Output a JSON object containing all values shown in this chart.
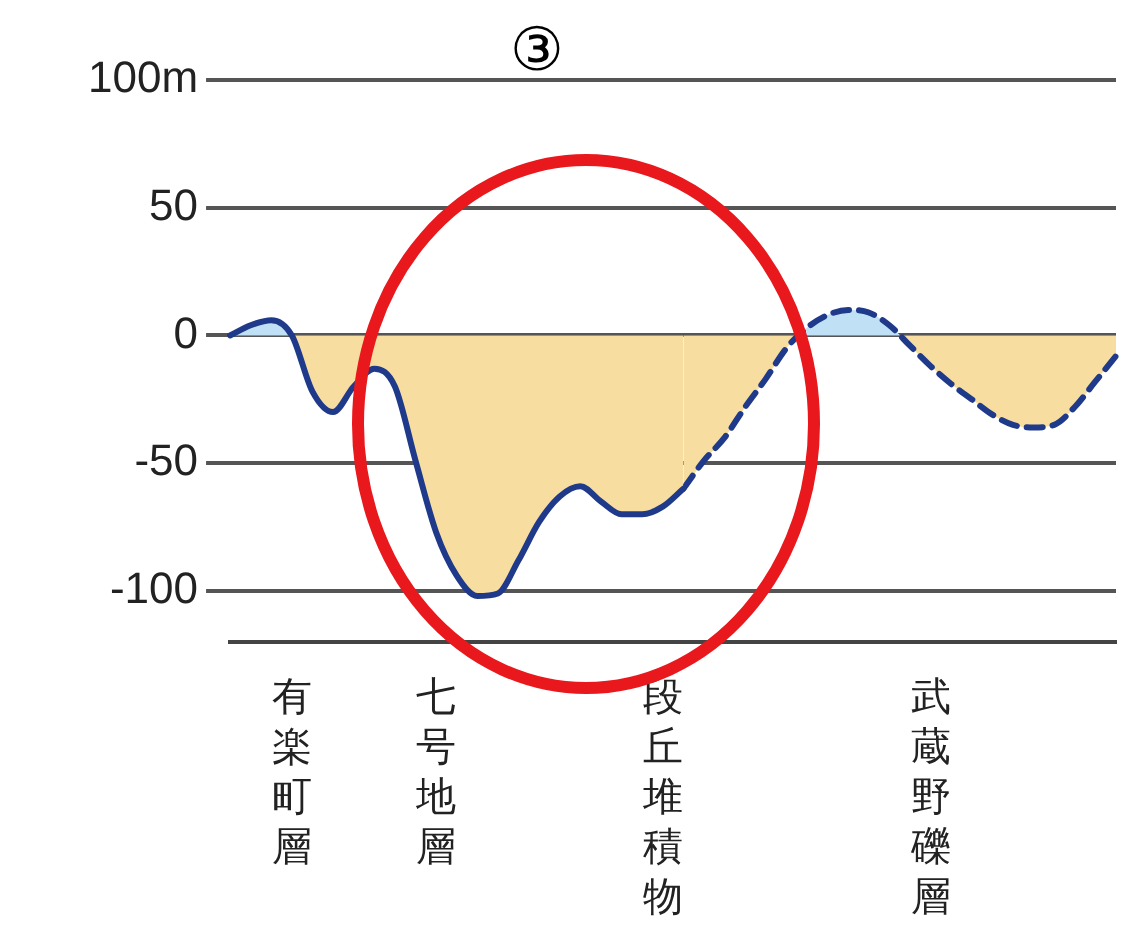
{
  "chart_data": {
    "type": "area",
    "annotations": [
      "③"
    ],
    "categories": [
      null,
      null,
      null,
      "有楽町層",
      null,
      null,
      null,
      null,
      null,
      null,
      "七号地層",
      null,
      null,
      null,
      null,
      null,
      null,
      null,
      null,
      null,
      null,
      "段丘堆積物",
      null,
      null,
      null,
      null,
      null,
      null,
      null,
      null,
      null,
      null,
      null,
      null,
      "武蔵野礫層",
      null,
      null,
      null,
      null,
      null,
      null,
      null,
      null,
      null
    ],
    "series": [
      {
        "color": "#1f3a8a",
        "line_style": "solid",
        "values": [
          0,
          4,
          6,
          0,
          -22,
          -30,
          -20,
          -13,
          -20,
          -49,
          -77,
          -94,
          -102,
          -101,
          -88,
          -73,
          -63,
          -59,
          -65,
          -70,
          -70,
          -67,
          -60,
          null,
          null,
          null,
          null,
          null,
          null,
          null,
          null,
          null,
          null,
          null,
          null,
          null,
          null,
          null,
          null,
          null,
          null,
          null,
          null,
          null
        ]
      },
      {
        "color": "#1f3a8a",
        "line_style": "dashed",
        "values": [
          null,
          null,
          null,
          null,
          null,
          null,
          null,
          null,
          null,
          null,
          null,
          null,
          null,
          null,
          null,
          null,
          null,
          null,
          null,
          null,
          null,
          null,
          -60,
          -49,
          -40,
          -28,
          -17,
          -5,
          3,
          8,
          10,
          9,
          4,
          -4,
          -12,
          -19,
          -25,
          -31,
          -35,
          -36,
          -35,
          -28,
          -18,
          -8
        ]
      }
    ],
    "ylim": [
      -120,
      100
    ],
    "yticks": [
      {
        "value": 100,
        "label": "100m"
      },
      50,
      0,
      -50,
      -100
    ],
    "grid": "y",
    "tick_labels": "y",
    "legend": false
  }
}
